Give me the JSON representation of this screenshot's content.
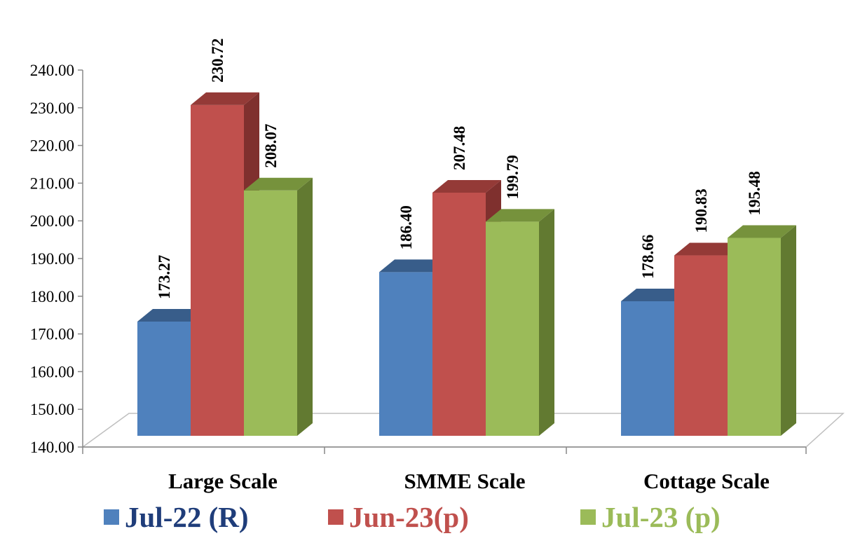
{
  "chart_data": {
    "type": "bar",
    "categories": [
      "Large Scale",
      "SMME Scale",
      "Cottage Scale"
    ],
    "series": [
      {
        "name": "Jul-22 (R)",
        "values": [
          173.27,
          186.4,
          178.66
        ],
        "color": "#4F81BD",
        "top": "#385D8A",
        "side": "#2F4D74",
        "text_color": "#1F3D7A"
      },
      {
        "name": "Jun-23(p)",
        "values": [
          230.72,
          207.48,
          190.83
        ],
        "color": "#C0504D",
        "top": "#943A37",
        "side": "#7F302E",
        "text_color": "#C0504D"
      },
      {
        "name": "Jul-23 (p)",
        "values": [
          208.07,
          199.79,
          195.48
        ],
        "color": "#9BBB59",
        "top": "#76923C",
        "side": "#627A31",
        "text_color": "#9BBB59"
      }
    ],
    "data_labels": [
      [
        "173.27",
        "186.40",
        "178.66"
      ],
      [
        "230.72",
        "207.48",
        "190.83"
      ],
      [
        "208.07",
        "199.79",
        "195.48"
      ]
    ],
    "yticks": [
      "140.00",
      "150.00",
      "160.00",
      "170.00",
      "180.00",
      "190.00",
      "200.00",
      "210.00",
      "220.00",
      "230.00",
      "240.00"
    ],
    "ylim": [
      140,
      240
    ],
    "ystep": 10,
    "title": "",
    "xlabel": "",
    "ylabel": "",
    "grid": false,
    "legend_position": "bottom",
    "three_d": true
  }
}
